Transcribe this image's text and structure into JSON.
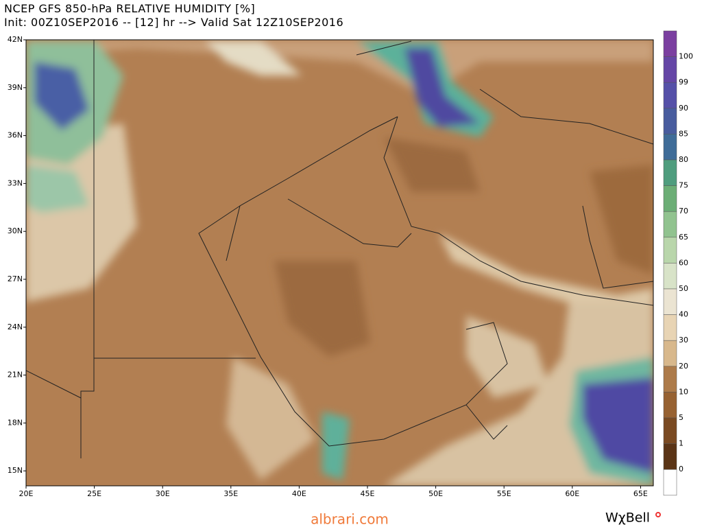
{
  "header": {
    "title": "NCEP GFS 850-hPa RELATIVE HUMIDITY [%]",
    "subtitle": "Init: 00Z10SEP2016 -- [12] hr --> Valid Sat 12Z10SEP2016"
  },
  "latitude_labels": [
    "42N",
    "39N",
    "36N",
    "33N",
    "30N",
    "27N",
    "24N",
    "21N",
    "18N",
    "15N"
  ],
  "longitude_labels": [
    "20E",
    "25E",
    "30E",
    "35E",
    "40E",
    "45E",
    "50E",
    "55E",
    "60E",
    "65E"
  ],
  "colorbar": {
    "labels": [
      100,
      99,
      90,
      85,
      80,
      75,
      70,
      65,
      60,
      50,
      40,
      30,
      20,
      10,
      5,
      1,
      0
    ]
  },
  "watermark": "albrari.com",
  "logo": "WχBell"
}
